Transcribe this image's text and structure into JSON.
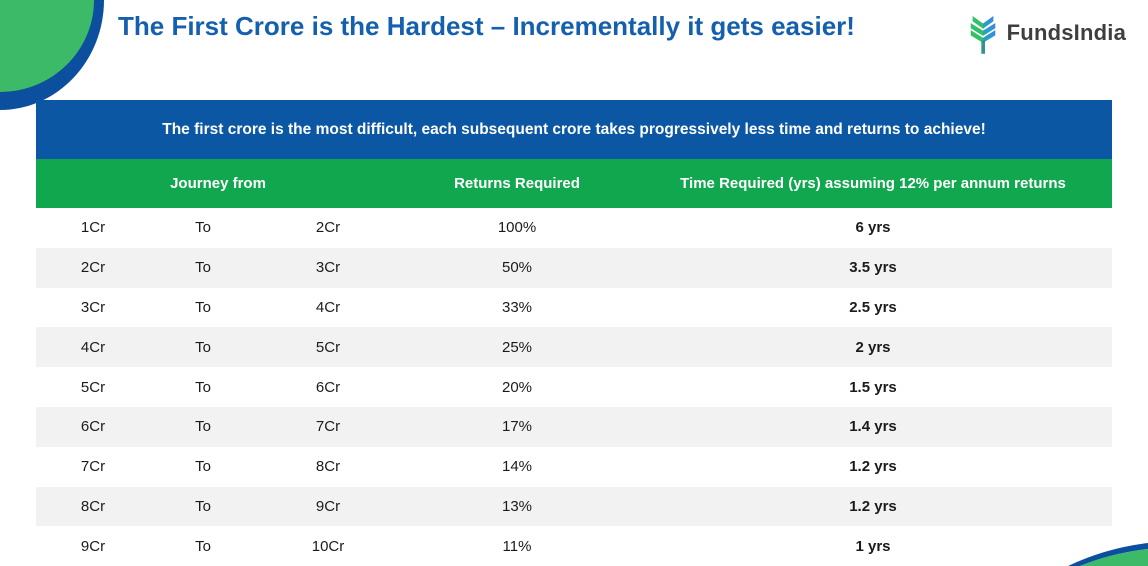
{
  "page": {
    "title": "The First Crore is the Hardest – Incrementally it gets easier!"
  },
  "logo": {
    "brand": "FundsIndia",
    "icon": "tree-chevrons-icon"
  },
  "banner": {
    "text": "The first crore is the most difficult, each subsequent crore takes progressively less time and returns to achieve!"
  },
  "table": {
    "headers": {
      "journey": "Journey from",
      "returns": "Returns Required",
      "time": "Time Required (yrs) assuming 12% per annum returns"
    },
    "rows": [
      {
        "from": "1Cr",
        "connector": "To",
        "to": "2Cr",
        "returns": "100%",
        "time": "6 yrs"
      },
      {
        "from": "2Cr",
        "connector": "To",
        "to": "3Cr",
        "returns": "50%",
        "time": "3.5 yrs"
      },
      {
        "from": "3Cr",
        "connector": "To",
        "to": "4Cr",
        "returns": "33%",
        "time": "2.5 yrs"
      },
      {
        "from": "4Cr",
        "connector": "To",
        "to": "5Cr",
        "returns": "25%",
        "time": "2 yrs"
      },
      {
        "from": "5Cr",
        "connector": "To",
        "to": "6Cr",
        "returns": "20%",
        "time": "1.5 yrs"
      },
      {
        "from": "6Cr",
        "connector": "To",
        "to": "7Cr",
        "returns": "17%",
        "time": "1.4 yrs"
      },
      {
        "from": "7Cr",
        "connector": "To",
        "to": "8Cr",
        "returns": "14%",
        "time": "1.2 yrs"
      },
      {
        "from": "8Cr",
        "connector": "To",
        "to": "9Cr",
        "returns": "13%",
        "time": "1.2 yrs"
      },
      {
        "from": "9Cr",
        "connector": "To",
        "to": "10Cr",
        "returns": "11%",
        "time": "1 yrs"
      }
    ]
  },
  "colors": {
    "title_blue": "#1560AE",
    "banner_blue": "#0B57A4",
    "header_green": "#10A74E",
    "decoration_green": "#3DBA68",
    "decoration_blue": "#0B4F9E",
    "row_alt_gray": "#F2F2F2",
    "logo_text_gray": "#3E3E3D"
  },
  "chart_data": {
    "type": "table",
    "title": "The First Crore is the Hardest – Incrementally it gets easier!",
    "subtitle": "The first crore is the most difficult, each subsequent crore takes progressively less time and returns to achieve!",
    "columns": [
      "Journey from (start)",
      "Journey from (connector)",
      "Journey to",
      "Returns Required",
      "Time Required (yrs) assuming 12% per annum returns"
    ],
    "rows": [
      [
        "1Cr",
        "To",
        "2Cr",
        "100%",
        "6 yrs"
      ],
      [
        "2Cr",
        "To",
        "3Cr",
        "50%",
        "3.5 yrs"
      ],
      [
        "3Cr",
        "To",
        "4Cr",
        "33%",
        "2.5 yrs"
      ],
      [
        "4Cr",
        "To",
        "5Cr",
        "25%",
        "2 yrs"
      ],
      [
        "5Cr",
        "To",
        "6Cr",
        "20%",
        "1.5 yrs"
      ],
      [
        "6Cr",
        "To",
        "7Cr",
        "17%",
        "1.4 yrs"
      ],
      [
        "7Cr",
        "To",
        "8Cr",
        "14%",
        "1.2 yrs"
      ],
      [
        "8Cr",
        "To",
        "9Cr",
        "13%",
        "1.2 yrs"
      ],
      [
        "9Cr",
        "To",
        "10Cr",
        "11%",
        "1 yrs"
      ]
    ]
  }
}
